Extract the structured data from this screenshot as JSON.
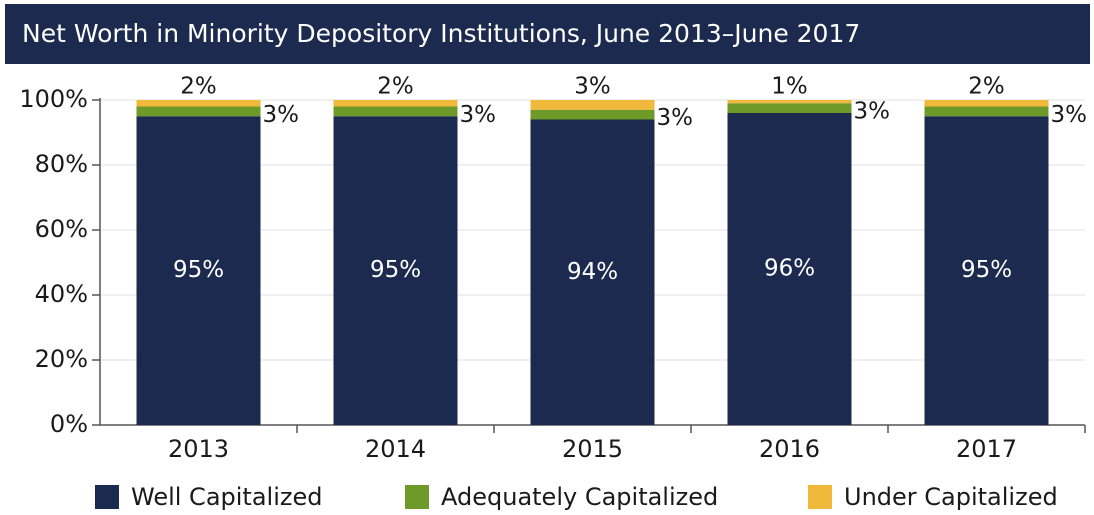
{
  "chart_data": {
    "type": "stacked_bar",
    "title": "Net Worth in Minority Depository Institutions, June 2013–June 2017",
    "categories": [
      "2013",
      "2014",
      "2015",
      "2016",
      "2017"
    ],
    "series": [
      {
        "name": "Well Capitalized",
        "color": "#1b2a4e",
        "values": [
          95,
          95,
          94,
          96,
          95
        ],
        "value_labels": [
          "95%",
          "95%",
          "94%",
          "96%",
          "95%"
        ]
      },
      {
        "name": "Adequately Capitalized",
        "color": "#6e9a2a",
        "values": [
          3,
          3,
          3,
          3,
          3
        ],
        "value_labels": [
          "3%",
          "3%",
          "3%",
          "3%",
          "3%"
        ]
      },
      {
        "name": "Under Capitalized",
        "color": "#f0b93c",
        "values": [
          2,
          2,
          3,
          1,
          2
        ],
        "value_labels": [
          "2%",
          "2%",
          "3%",
          "1%",
          "2%"
        ]
      }
    ],
    "ylim": [
      0,
      100
    ],
    "yticks": [
      {
        "value": 0,
        "label": "0%"
      },
      {
        "value": 20,
        "label": "20%"
      },
      {
        "value": 40,
        "label": "40%"
      },
      {
        "value": 60,
        "label": "60%"
      },
      {
        "value": 80,
        "label": "80%"
      },
      {
        "value": 100,
        "label": "100%"
      }
    ],
    "grid": true
  }
}
